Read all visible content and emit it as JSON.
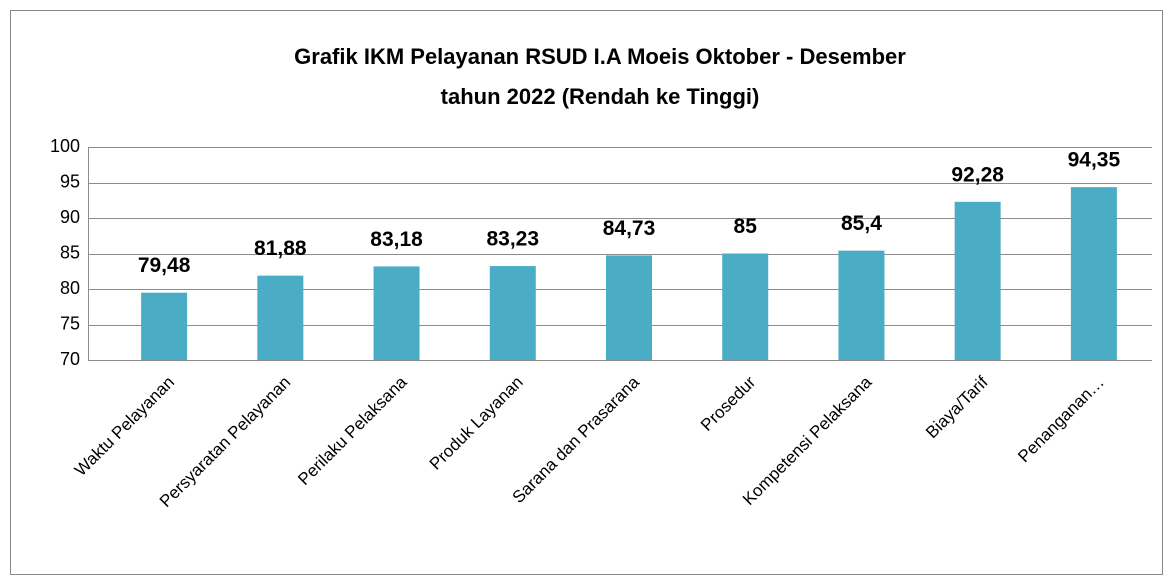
{
  "chart_data": {
    "type": "bar",
    "title": [
      "Grafik IKM Pelayanan RSUD I.A Moeis Oktober - Desember",
      "tahun 2022 (Rendah ke Tinggi)"
    ],
    "categories": [
      "Waktu Pelayanan",
      "Persyaratan Pelayanan",
      "Perilaku Pelaksana",
      "Produk Layanan",
      "Sarana dan Prasarana",
      "Prosedur",
      "Kompetensi Pelaksana",
      "Biaya/Tarif",
      "Penanganan…"
    ],
    "values": [
      79.48,
      81.88,
      83.18,
      83.23,
      84.73,
      85,
      85.4,
      92.28,
      94.35
    ],
    "value_labels": [
      "79,48",
      "81,88",
      "83,18",
      "83,23",
      "84,73",
      "85",
      "85,4",
      "92,28",
      "94,35"
    ],
    "color": "#4bacc6",
    "ylim": [
      70,
      100
    ],
    "yticks": [
      70,
      75,
      80,
      85,
      90,
      95,
      100
    ],
    "grid": true
  }
}
